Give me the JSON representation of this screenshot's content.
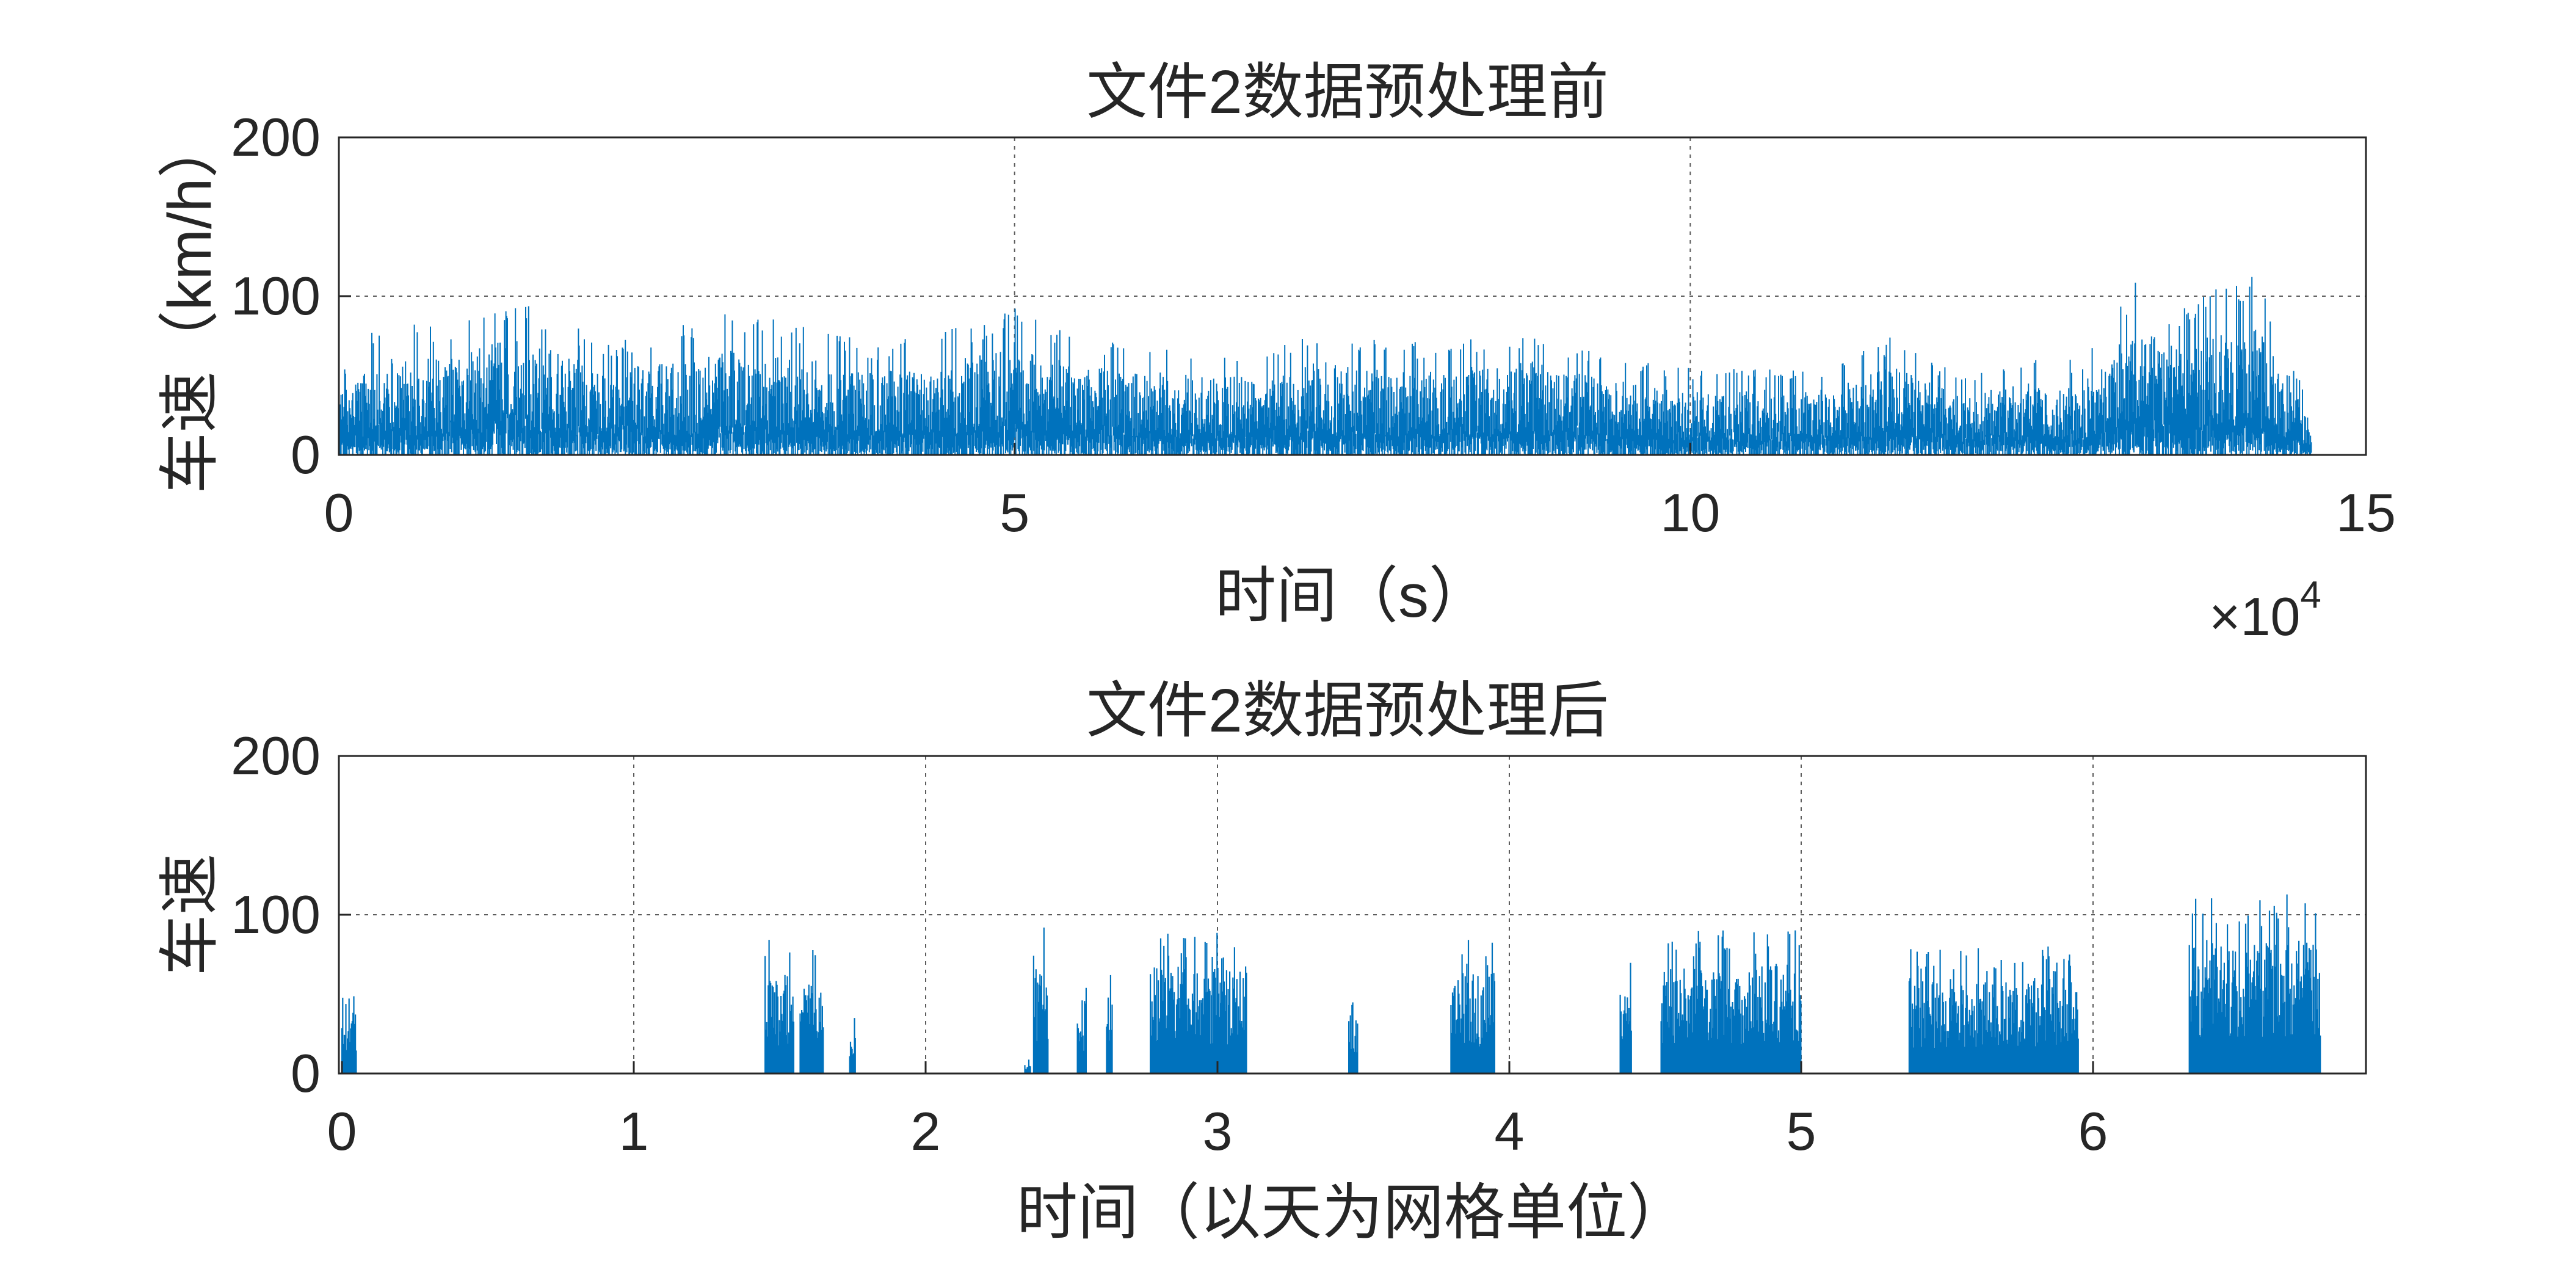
{
  "chart_data": [
    {
      "type": "line",
      "title": "文件2数据预处理前",
      "xlabel": "时间（s）",
      "ylabel": "车速（km/h）",
      "xlim": [
        0,
        15
      ],
      "ylim": [
        0,
        200
      ],
      "x_ticks": [
        "0",
        "5",
        "10",
        "15"
      ],
      "y_ticks": [
        "0",
        "100",
        "200"
      ],
      "x_exponent_label": "×10",
      "x_exponent_power": "4",
      "grid": true,
      "color": "#0072BD",
      "series": [
        {
          "x": [
            0,
            0.3,
            0.8,
            1.3,
            2.0,
            2.9,
            3.3,
            4.0,
            4.8,
            5.0,
            5.5,
            6.0,
            6.5,
            7.0,
            7.3,
            7.8,
            8.5,
            8.8,
            9.3,
            10.0,
            10.5,
            11.0,
            11.5,
            12.0,
            12.5,
            12.9,
            13.3,
            13.6,
            13.9,
            14.2,
            14.4,
            14.6
          ],
          "y_max": [
            50,
            85,
            80,
            100,
            70,
            90,
            85,
            70,
            85,
            95,
            75,
            70,
            65,
            70,
            80,
            70,
            75,
            80,
            65,
            55,
            55,
            55,
            75,
            50,
            60,
            60,
            110,
            90,
            105,
            115,
            60,
            40
          ],
          "y_min": [
            0,
            0,
            0,
            0,
            0,
            0,
            0,
            0,
            0,
            0,
            0,
            0,
            0,
            0,
            0,
            0,
            0,
            0,
            0,
            0,
            0,
            0,
            0,
            0,
            0,
            0,
            0,
            0,
            0,
            0,
            0,
            0
          ]
        }
      ]
    },
    {
      "type": "line",
      "title": "文件2数据预处理后",
      "xlabel": "时间（以天为网格单位）",
      "ylabel": "车速",
      "ylim": [
        0,
        200
      ],
      "x_ticks": [
        "0",
        "1",
        "2",
        "3",
        "4",
        "5",
        "6"
      ],
      "y_ticks": [
        "0",
        "100",
        "200"
      ],
      "grid": true,
      "color": "#0072BD",
      "bursts": [
        {
          "start": 0.0,
          "end": 0.05,
          "peak": 52
        },
        {
          "start": 1.45,
          "end": 1.55,
          "peak": 85
        },
        {
          "start": 1.57,
          "end": 1.65,
          "peak": 80
        },
        {
          "start": 1.74,
          "end": 1.76,
          "peak": 35
        },
        {
          "start": 2.34,
          "end": 2.36,
          "peak": 12
        },
        {
          "start": 2.37,
          "end": 2.42,
          "peak": 100
        },
        {
          "start": 2.52,
          "end": 2.55,
          "peak": 65
        },
        {
          "start": 2.62,
          "end": 2.64,
          "peak": 65
        },
        {
          "start": 2.77,
          "end": 3.1,
          "peak": 90
        },
        {
          "start": 3.45,
          "end": 3.48,
          "peak": 65
        },
        {
          "start": 3.8,
          "end": 3.95,
          "peak": 85
        },
        {
          "start": 4.38,
          "end": 4.42,
          "peak": 70
        },
        {
          "start": 4.52,
          "end": 5.0,
          "peak": 92
        },
        {
          "start": 5.37,
          "end": 5.95,
          "peak": 80
        },
        {
          "start": 6.33,
          "end": 6.78,
          "peak": 115
        }
      ]
    }
  ]
}
